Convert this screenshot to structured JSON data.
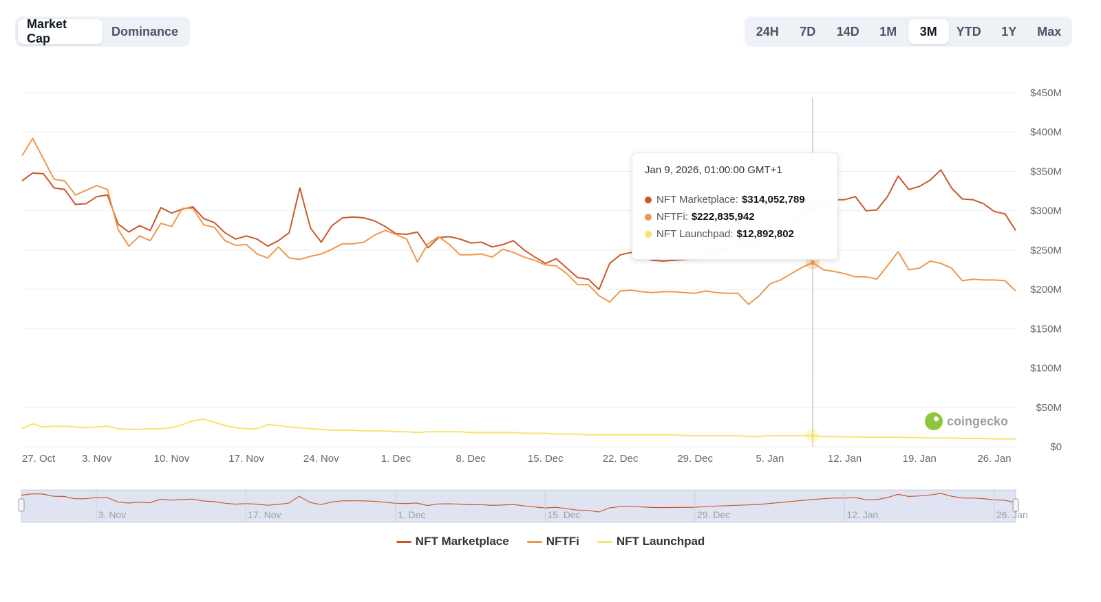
{
  "tabs": {
    "metric": [
      {
        "label": "Market Cap",
        "active": true
      },
      {
        "label": "Dominance",
        "active": false
      }
    ],
    "range": [
      {
        "label": "24H",
        "active": false
      },
      {
        "label": "7D",
        "active": false
      },
      {
        "label": "14D",
        "active": false
      },
      {
        "label": "1M",
        "active": false
      },
      {
        "label": "3M",
        "active": true
      },
      {
        "label": "YTD",
        "active": false
      },
      {
        "label": "1Y",
        "active": false
      },
      {
        "label": "Max",
        "active": false
      }
    ]
  },
  "tooltip": {
    "date": "Jan 9, 2026, 01:00:00 GMT+1",
    "rows": [
      {
        "name": "NFT Marketplace:",
        "value": "$314,052,789",
        "color": "#c9582b"
      },
      {
        "name": "NFTFi:",
        "value": "$222,835,942",
        "color": "#f0974b"
      },
      {
        "name": "NFT Launchpad:",
        "value": "$12,892,802",
        "color": "#f7e36b"
      }
    ]
  },
  "watermark": {
    "text": "coingecko"
  },
  "colors": {
    "marketplace": "#c9582b",
    "nftfi": "#f0974b",
    "launchpad": "#f7e36b",
    "grid": "#eceff3",
    "axis_text": "#6b7280"
  },
  "chart_data": {
    "type": "line",
    "x_start": "2025-10-27",
    "x_step_days": 1,
    "ylim": [
      0,
      450000000
    ],
    "y_ticks": [
      0,
      50000000,
      100000000,
      150000000,
      200000000,
      250000000,
      300000000,
      350000000,
      400000000,
      450000000
    ],
    "y_tick_labels": [
      "$0",
      "$50M",
      "$100M",
      "$150M",
      "$200M",
      "$250M",
      "$300M",
      "$350M",
      "$400M",
      "$450M"
    ],
    "x_tick_labels": [
      "27. Oct",
      "3. Nov",
      "10. Nov",
      "17. Nov",
      "24. Nov",
      "1. Dec",
      "8. Dec",
      "15. Dec",
      "22. Dec",
      "29. Dec",
      "5. Jan",
      "12. Jan",
      "19. Jan",
      "26. Jan"
    ],
    "navigator_tick_labels": [
      "3. Nov",
      "17. Nov",
      "1. Dec",
      "15. Dec",
      "29. Dec",
      "12. Jan",
      "26. Jan"
    ],
    "grid": true,
    "legend": "bottom-center",
    "hover_date": "2026-01-09",
    "series": [
      {
        "name": "NFT Marketplace",
        "color": "#c9582b",
        "values": [
          338000000,
          348000000,
          347000000,
          329000000,
          327000000,
          308000000,
          309000000,
          318000000,
          320000000,
          283000000,
          273000000,
          281000000,
          275000000,
          304000000,
          297000000,
          302000000,
          305000000,
          290000000,
          285000000,
          272000000,
          264000000,
          268000000,
          264000000,
          255000000,
          262000000,
          272000000,
          329000000,
          278000000,
          260000000,
          281000000,
          291000000,
          292000000,
          291000000,
          287000000,
          280000000,
          271000000,
          270000000,
          273000000,
          253000000,
          266000000,
          267000000,
          264000000,
          259000000,
          260000000,
          254000000,
          257000000,
          262000000,
          250000000,
          241000000,
          233000000,
          239000000,
          227000000,
          215000000,
          213000000,
          200000000,
          233000000,
          244000000,
          247000000,
          241000000,
          237000000,
          236000000,
          237000000,
          238000000,
          239000000,
          244000000,
          249000000,
          252000000,
          255000000,
          258000000,
          262000000,
          270000000,
          278000000,
          286000000,
          294000000,
          302000000,
          308000000,
          314052789,
          314000000,
          318000000,
          300000000,
          301000000,
          318000000,
          344000000,
          327000000,
          331000000,
          339000000,
          352000000,
          329000000,
          315000000,
          314000000,
          309000000,
          299000000,
          296000000,
          275000000
        ]
      },
      {
        "name": "NFTFi",
        "color": "#f0974b",
        "values": [
          370000000,
          392000000,
          366000000,
          340000000,
          338000000,
          320000000,
          326000000,
          332000000,
          327000000,
          276000000,
          255000000,
          268000000,
          262000000,
          284000000,
          280000000,
          303000000,
          303000000,
          282000000,
          279000000,
          262000000,
          256000000,
          257000000,
          245000000,
          240000000,
          254000000,
          240000000,
          238000000,
          242000000,
          245000000,
          251000000,
          258000000,
          258000000,
          260000000,
          269000000,
          275000000,
          270000000,
          264000000,
          235000000,
          258000000,
          267000000,
          257000000,
          244000000,
          244000000,
          245000000,
          241000000,
          251000000,
          247000000,
          241000000,
          237000000,
          231000000,
          230000000,
          220000000,
          206000000,
          206000000,
          192000000,
          184000000,
          198000000,
          199000000,
          197000000,
          196000000,
          197000000,
          197000000,
          196000000,
          195000000,
          198000000,
          196000000,
          195000000,
          195000000,
          181000000,
          192000000,
          207000000,
          212000000,
          220000000,
          228000000,
          234000000,
          225000000,
          222835942,
          220000000,
          216000000,
          216000000,
          213000000,
          230000000,
          248000000,
          225000000,
          227000000,
          236000000,
          233000000,
          227000000,
          211000000,
          213000000,
          212000000,
          212000000,
          211000000,
          198000000
        ]
      },
      {
        "name": "NFT Launchpad",
        "color": "#f7e36b",
        "values": [
          23000000,
          29000000,
          25000000,
          26000000,
          26000000,
          25000000,
          24000000,
          25000000,
          26000000,
          23000000,
          22000000,
          22000000,
          23000000,
          23000000,
          24000000,
          28000000,
          33000000,
          35000000,
          31000000,
          27000000,
          24000000,
          23000000,
          23000000,
          28000000,
          27000000,
          25000000,
          24000000,
          23000000,
          22000000,
          21000000,
          21000000,
          21000000,
          20000000,
          20000000,
          20000000,
          19000000,
          19000000,
          18000000,
          19000000,
          19000000,
          19000000,
          19000000,
          18000000,
          18000000,
          18000000,
          18000000,
          18000000,
          17000000,
          17000000,
          17000000,
          16000000,
          16000000,
          16000000,
          15000000,
          15000000,
          15000000,
          15000000,
          15000000,
          15000000,
          15000000,
          15000000,
          15000000,
          14000000,
          14000000,
          14000000,
          14000000,
          14000000,
          14000000,
          13000000,
          13000000,
          14000000,
          14000000,
          14000000,
          14000000,
          14000000,
          13000000,
          12892802,
          12500000,
          12500000,
          12000000,
          12000000,
          12000000,
          12000000,
          11500000,
          11500000,
          11000000,
          11000000,
          11000000,
          10500000,
          10500000,
          10500000,
          10000000,
          10000000,
          10000000
        ]
      }
    ]
  }
}
